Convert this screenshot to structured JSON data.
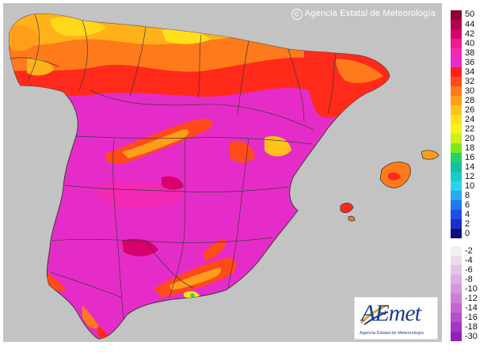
{
  "copyright": "Agencia Estatal de Meteorología",
  "logo": {
    "wordmark": "AEmet",
    "subtitle": "Agencia Estatal de Meteorología"
  },
  "legend_positive": [
    {
      "label": "50",
      "color": "#8b0036"
    },
    {
      "label": "44",
      "color": "#b5004f"
    },
    {
      "label": "42",
      "color": "#d8006d"
    },
    {
      "label": "40",
      "color": "#ee1b92"
    },
    {
      "label": "38",
      "color": "#f22ab4"
    },
    {
      "label": "36",
      "color": "#e62cc8"
    },
    {
      "label": "34",
      "color": "#ff1f1f"
    },
    {
      "label": "32",
      "color": "#ff4a1a"
    },
    {
      "label": "30",
      "color": "#ff7a1a"
    },
    {
      "label": "28",
      "color": "#ff9e1a"
    },
    {
      "label": "26",
      "color": "#ffc21a"
    },
    {
      "label": "24",
      "color": "#ffe01a"
    },
    {
      "label": "22",
      "color": "#f4f41c"
    },
    {
      "label": "20",
      "color": "#c8f01c"
    },
    {
      "label": "18",
      "color": "#7ee81c"
    },
    {
      "label": "16",
      "color": "#22d36a"
    },
    {
      "label": "14",
      "color": "#14c0a0"
    },
    {
      "label": "12",
      "color": "#18cccc"
    },
    {
      "label": "10",
      "color": "#2ad4f0"
    },
    {
      "label": "8",
      "color": "#2aa8f0"
    },
    {
      "label": "6",
      "color": "#1e7af0"
    },
    {
      "label": "4",
      "color": "#1e4fe6"
    },
    {
      "label": "2",
      "color": "#1a2ec8"
    },
    {
      "label": "0",
      "color": "#0c0c7a"
    }
  ],
  "legend_negative": [
    {
      "label": "-2",
      "color": "#f4f0f4"
    },
    {
      "label": "-4",
      "color": "#ecdcec"
    },
    {
      "label": "-6",
      "color": "#e4c4e8"
    },
    {
      "label": "-8",
      "color": "#dcaee2"
    },
    {
      "label": "-10",
      "color": "#d496dc"
    },
    {
      "label": "-12",
      "color": "#cc7ed6"
    },
    {
      "label": "-14",
      "color": "#c266d0"
    },
    {
      "label": "-16",
      "color": "#b44ecb"
    },
    {
      "label": "-18",
      "color": "#a636c4"
    },
    {
      "label": "-30",
      "color": "#9420bc"
    }
  ]
}
